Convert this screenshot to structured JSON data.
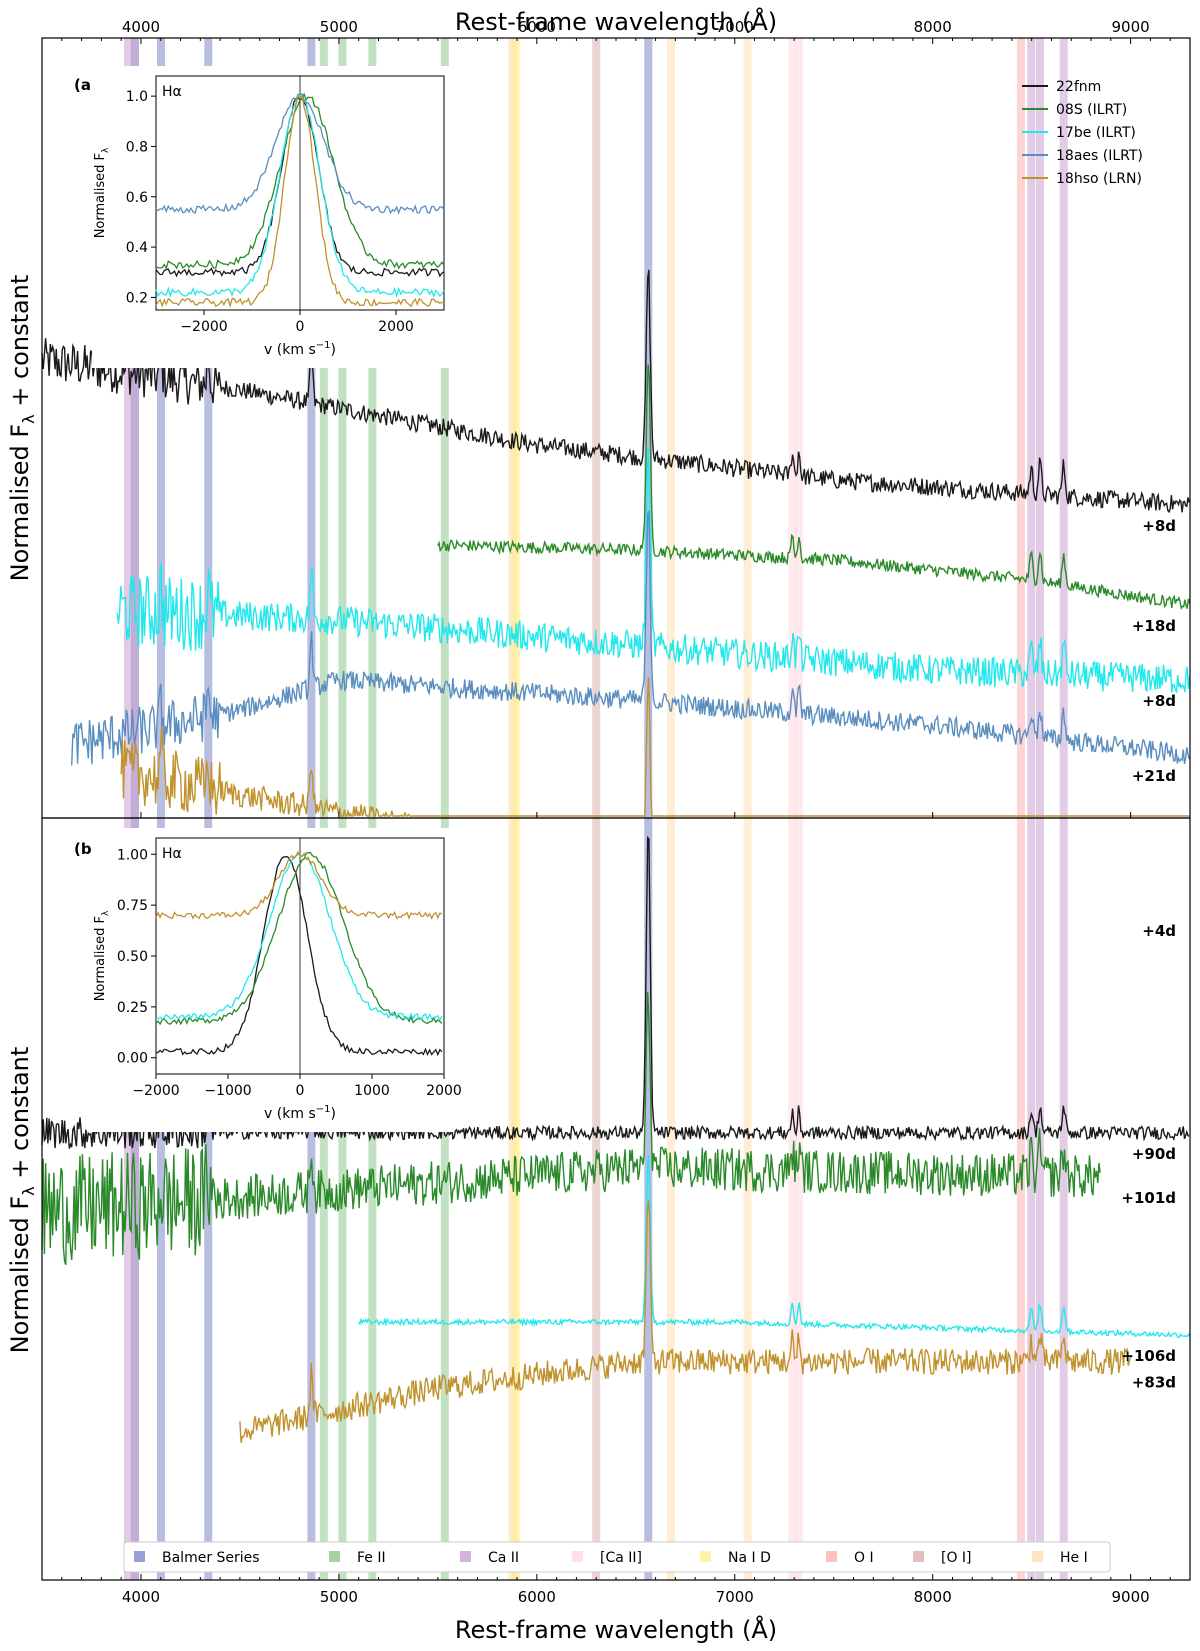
{
  "figure": {
    "top_xlabel": "Rest-frame wavelength (Å)",
    "bottom_xlabel": "Rest-frame wavelength (Å)",
    "ylabel": "Normalised F",
    "ylabel_sub": "λ",
    "ylabel_tail": " + constant"
  },
  "chart_data": {
    "type": "line",
    "xlim": [
      3500,
      9300
    ],
    "x_ticks": [
      4000,
      5000,
      6000,
      7000,
      8000,
      9000
    ],
    "y_ticks_shown": false,
    "line_bands": [
      {
        "name": "Balmer Series",
        "color": "#8088c8",
        "wavelengths": [
          3970,
          4101,
          4340,
          4861,
          6563
        ]
      },
      {
        "name": "Fe II",
        "color": "#90c890",
        "wavelengths": [
          4924,
          5018,
          5169,
          5535
        ]
      },
      {
        "name": "Ca II",
        "color": "#c8a0d0",
        "wavelengths": [
          3934,
          3969,
          8498,
          8542,
          8662
        ]
      },
      {
        "name": "[Ca II]",
        "color": "#ffd8e0",
        "wavelengths": [
          7291,
          7324
        ]
      },
      {
        "name": "Na I D",
        "color": "#fff090",
        "wavelengths": [
          5890,
          5896
        ]
      },
      {
        "name": "O I",
        "color": "#ffb0b0",
        "wavelengths": [
          8446
        ]
      },
      {
        "name": "[O I]",
        "color": "#d8b0b0",
        "wavelengths": [
          6300
        ]
      },
      {
        "name": "He I",
        "color": "#ffe0b0",
        "wavelengths": [
          5876,
          6678,
          7065
        ]
      }
    ],
    "panels": [
      {
        "id": "a",
        "label": "(a)",
        "series": [
          {
            "name": "22fnm",
            "color": "#1a1a1a",
            "epoch": "+8d",
            "x_range": [
              3500,
              9300
            ],
            "continuum": [
              [
                3500,
                0.82
              ],
              [
                4500,
                0.76
              ],
              [
                6000,
                0.65
              ],
              [
                7500,
                0.58
              ],
              [
                9300,
                0.53
              ]
            ],
            "noise": 0.018
          },
          {
            "name": "08S (ILRT)",
            "color": "#2a8a2a",
            "epoch": "+18d",
            "x_range": [
              5500,
              9300
            ],
            "continuum": [
              [
                5500,
                0.45
              ],
              [
                6500,
                0.44
              ],
              [
                7500,
                0.42
              ],
              [
                8500,
                0.38
              ],
              [
                9300,
                0.33
              ]
            ],
            "noise": 0.012
          },
          {
            "name": "17be (ILRT)",
            "color": "#22e8ec",
            "epoch": "+8d",
            "x_range": [
              3880,
              9300
            ],
            "continuum": [
              [
                3880,
                0.32
              ],
              [
                5000,
                0.3
              ],
              [
                6500,
                0.25
              ],
              [
                8000,
                0.2
              ],
              [
                9300,
                0.18
              ]
            ],
            "noise": 0.03
          },
          {
            "name": "18aes (ILRT)",
            "color": "#5a8ec0",
            "epoch": "+21d",
            "x_range": [
              3650,
              9300
            ],
            "continuum": [
              [
                3650,
                0.05
              ],
              [
                4500,
                0.12
              ],
              [
                5000,
                0.18
              ],
              [
                6500,
                0.14
              ],
              [
                8000,
                0.09
              ],
              [
                9300,
                0.03
              ]
            ],
            "noise": 0.02
          },
          {
            "name": "18hso (LRN)",
            "color": "#c0922e",
            "epoch": "+4d",
            "x_range": [
              3900,
              9300
            ],
            "continuum": [
              [
                3900,
                0.0
              ],
              [
                4500,
                -0.05
              ],
              [
                5500,
                -0.12
              ],
              [
                6500,
                -0.2
              ],
              [
                8000,
                -0.26
              ],
              [
                9300,
                -0.28
              ]
            ],
            "noise": 0.025
          }
        ],
        "inset": {
          "title": "Hα",
          "xlabel": "v (km s",
          "xlabel_sup": "−1",
          "xlabel_tail": ")",
          "ylabel": "Normalised F",
          "ylabel_sub": "λ",
          "xlim": [
            -3000,
            3000
          ],
          "ylim": [
            0.15,
            1.08
          ],
          "x_ticks": [
            -2000,
            0,
            2000
          ],
          "y_ticks": [
            0.2,
            0.4,
            0.6,
            0.8,
            1.0
          ],
          "y_tick_labels": [
            "0.2",
            "0.4",
            "0.6",
            "0.8",
            "1.0"
          ],
          "series": [
            {
              "name": "22fnm",
              "peak_v": 0,
              "base": 0.3,
              "sigma": 380
            },
            {
              "name": "08S (ILRT)",
              "peak_v": 150,
              "base": 0.33,
              "sigma": 550
            },
            {
              "name": "17be (ILRT)",
              "peak_v": 0,
              "base": 0.22,
              "sigma": 420
            },
            {
              "name": "18aes (ILRT)",
              "peak_v": 0,
              "base": 0.55,
              "sigma": 500
            },
            {
              "name": "18hso (LRN)",
              "peak_v": 0,
              "base": 0.18,
              "sigma": 320
            }
          ]
        }
      },
      {
        "id": "b",
        "label": "(b)",
        "series": [
          {
            "name": "22fnm",
            "color": "#1a1a1a",
            "epoch": "+90d",
            "x_range": [
              3500,
              9300
            ],
            "continuum": [
              [
                3500,
                0.88
              ],
              [
                9300,
                0.88
              ]
            ],
            "noise": 0.015
          },
          {
            "name": "08S (ILRT)",
            "color": "#2a8a2a",
            "epoch": "+101d",
            "x_range": [
              3500,
              8850
            ],
            "continuum": [
              [
                3500,
                0.7
              ],
              [
                5000,
                0.75
              ],
              [
                6500,
                0.8
              ],
              [
                8850,
                0.78
              ]
            ],
            "noise": 0.05
          },
          {
            "name": "17be (ILRT)",
            "color": "#22e8ec",
            "epoch": "+106d",
            "x_range": [
              5100,
              9300
            ],
            "continuum": [
              [
                5100,
                0.45
              ],
              [
                7000,
                0.45
              ],
              [
                9300,
                0.42
              ]
            ],
            "noise": 0.006
          },
          {
            "name": "18hso (LRN)",
            "color": "#c0922e",
            "epoch": "+83d",
            "x_range": [
              4500,
              9000
            ],
            "continuum": [
              [
                4500,
                0.2
              ],
              [
                5500,
                0.3
              ],
              [
                6500,
                0.36
              ],
              [
                9000,
                0.36
              ]
            ],
            "noise": 0.03
          }
        ],
        "inset": {
          "title": "Hα",
          "xlabel": "v (km s",
          "xlabel_sup": "−1",
          "xlabel_tail": ")",
          "ylabel": "Normalised F",
          "ylabel_sub": "λ",
          "xlim": [
            -2000,
            2000
          ],
          "ylim": [
            -0.08,
            1.08
          ],
          "x_ticks": [
            -2000,
            -1000,
            0,
            1000,
            2000
          ],
          "y_ticks": [
            0.0,
            0.25,
            0.5,
            0.75,
            1.0
          ],
          "y_tick_labels": [
            "0.00",
            "0.25",
            "0.50",
            "0.75",
            "1.00"
          ],
          "series": [
            {
              "name": "22fnm",
              "peak_v": -200,
              "base": 0.03,
              "sigma": 300
            },
            {
              "name": "08S (ILRT)",
              "peak_v": 150,
              "base": 0.18,
              "sigma": 450
            },
            {
              "name": "17be (ILRT)",
              "peak_v": 0,
              "base": 0.2,
              "sigma": 420
            },
            {
              "name": "18hso (LRN)",
              "peak_v": 0,
              "base": 0.7,
              "sigma": 300
            }
          ]
        }
      }
    ],
    "legend_placement": "top-right",
    "band_legend_placement": "bottom"
  }
}
